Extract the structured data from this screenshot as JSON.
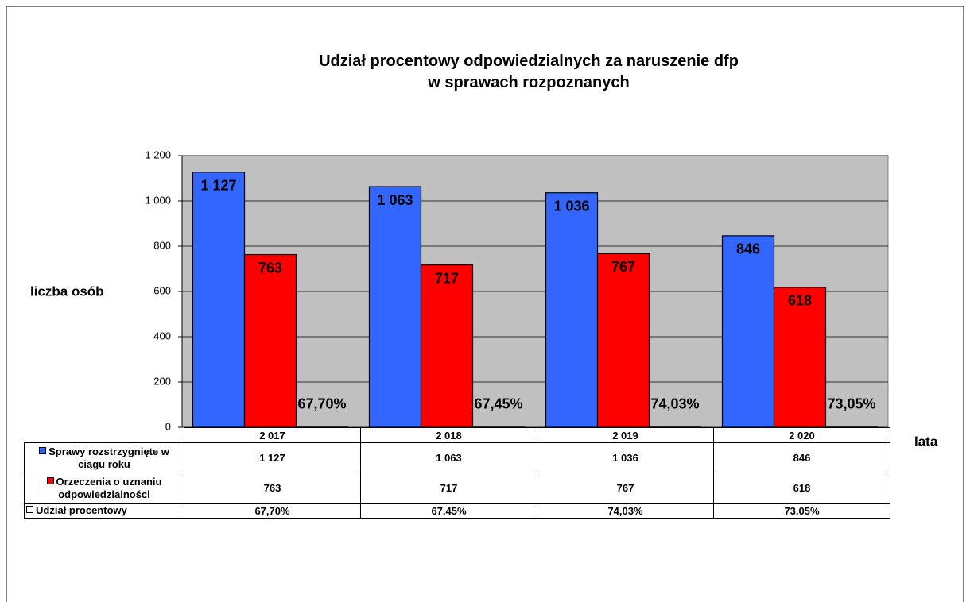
{
  "chart_data": {
    "type": "bar",
    "title": "Udział procentowy odpowiedzialnych za naruszenie dfp\nw sprawach rozpoznanych",
    "y_label": "liczba osób",
    "x_label": "lata",
    "categories": [
      "2 017",
      "2 018",
      "2 019",
      "2 020"
    ],
    "series": [
      {
        "name": "Sprawy rozstrzygnięte w ciągu roku",
        "color": "#3366ff",
        "values": [
          1127,
          1063,
          1036,
          846
        ],
        "value_labels": [
          "1 127",
          "1 063",
          "1 036",
          "846"
        ]
      },
      {
        "name": "Orzeczenia o uznaniu odpowiedzialności",
        "color": "#ff0000",
        "values": [
          763,
          717,
          767,
          618
        ],
        "value_labels": [
          "763",
          "717",
          "767",
          "618"
        ]
      },
      {
        "name": "Udział procentowy",
        "color": "#ffffff",
        "values": [
          0.677,
          0.6745,
          0.7403,
          0.7305
        ],
        "value_labels": [
          "67,70%",
          "67,45%",
          "74,03%",
          "73,05%"
        ]
      }
    ],
    "ylim": [
      0,
      1200
    ],
    "yticks": [
      0,
      200,
      400,
      600,
      800,
      {
        "value": 1000,
        "label": "1 000"
      },
      {
        "value": 1200,
        "label": "1 200"
      }
    ],
    "grid": true
  }
}
